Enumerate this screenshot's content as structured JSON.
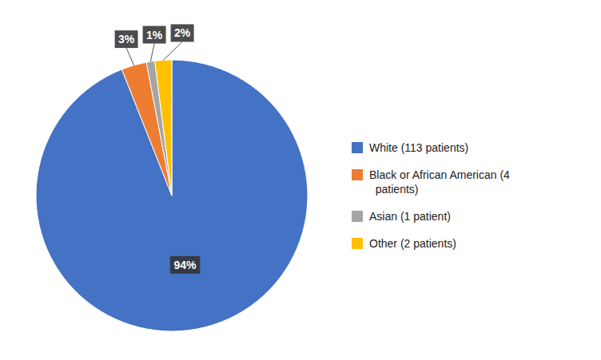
{
  "chart_data": {
    "type": "pie",
    "categories": [
      "White (113 patients)",
      "Black or African American (4\n  patients)",
      "Asian (1 patient)",
      "Other (2 patients)"
    ],
    "values": [
      94,
      3,
      1,
      2
    ],
    "value_labels": [
      "94%",
      "3%",
      "1%",
      "2%"
    ],
    "colors": [
      "#4472C4",
      "#ED7D31",
      "#A5A5A5",
      "#FFC000"
    ],
    "data_labels": true,
    "legend": "right"
  }
}
